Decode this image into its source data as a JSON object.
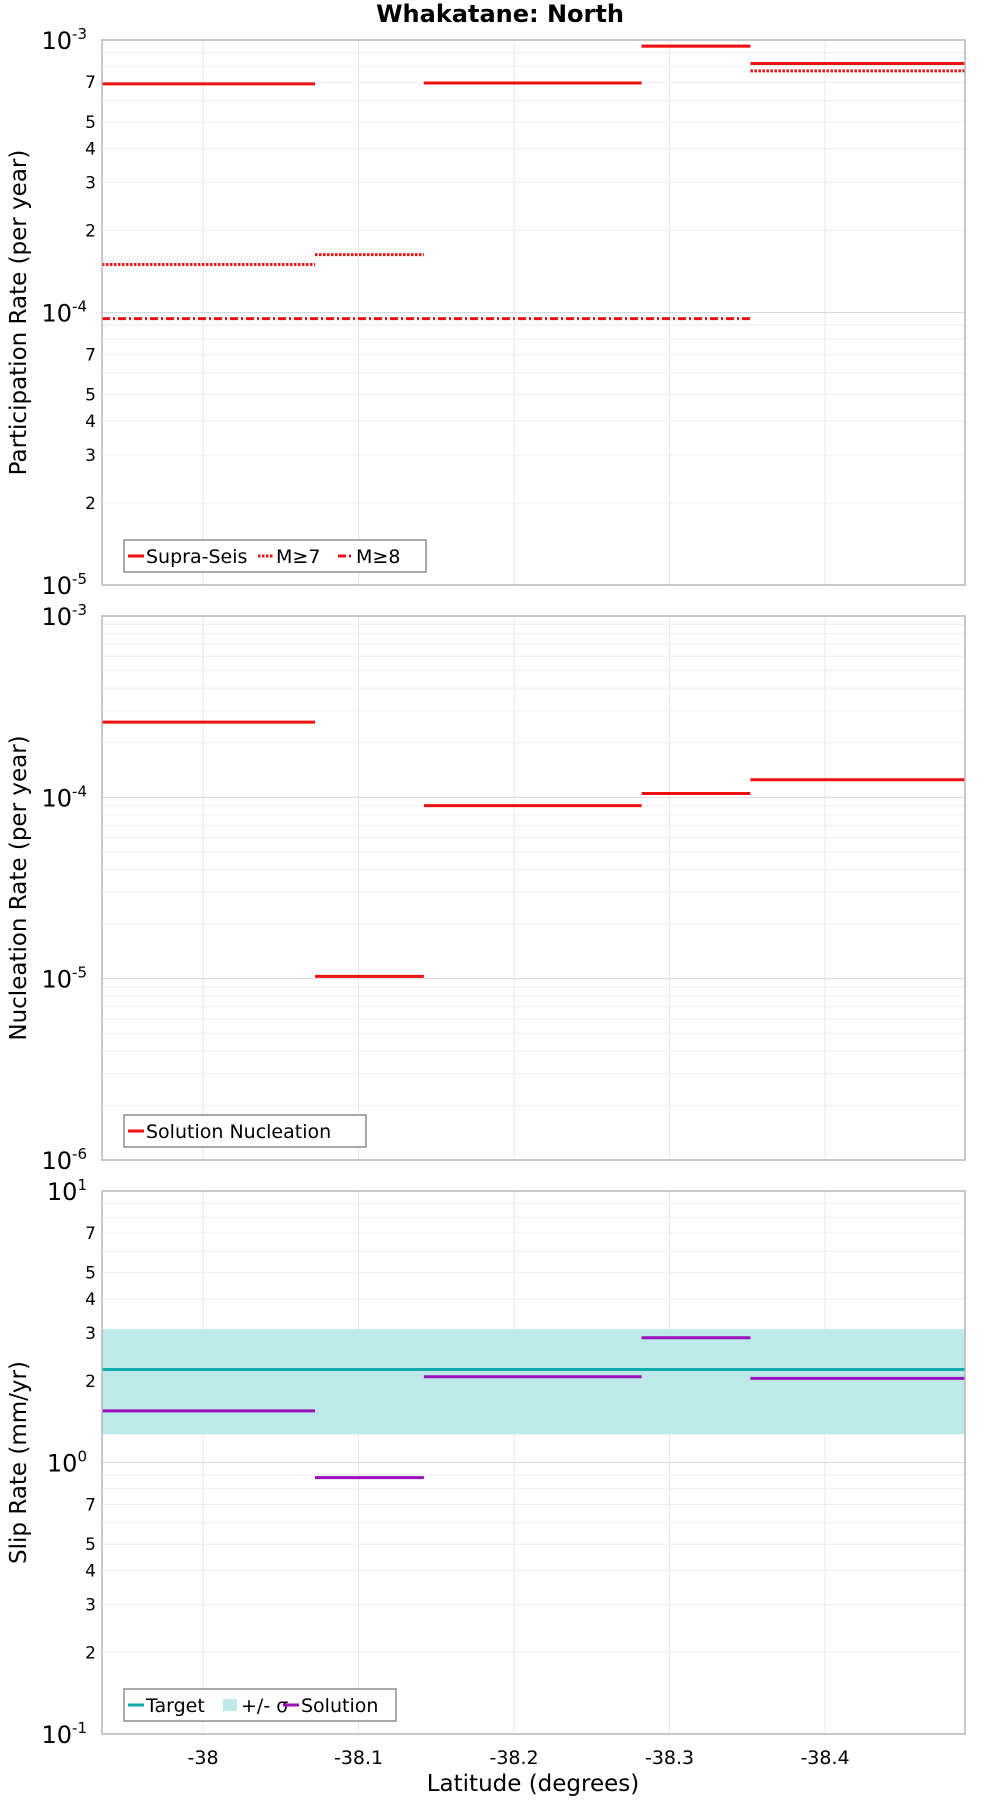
{
  "figure_title": "Whakatane: North",
  "x_axis_label": "Latitude (degrees)",
  "chart_data": [
    {
      "type": "step-line",
      "panel": "participation",
      "title": "Whakatane: North",
      "ylabel": "Participation Rate (per year)",
      "yscale": "log",
      "ylim": [
        1e-05,
        0.001
      ],
      "xlim": [
        -37.935,
        -38.49
      ],
      "xticks": [
        -38,
        -38.1,
        -38.2,
        -38.3,
        -38.4
      ],
      "xtick_labels": [
        "-38",
        "-38.1",
        "-38.2",
        "-38.3",
        "-38.4"
      ],
      "yticks": [
        {
          "value": 0.001,
          "base": "10",
          "exp": "-3",
          "major": true
        },
        {
          "value": 0.0007,
          "label": "7"
        },
        {
          "value": 0.0005,
          "label": "5"
        },
        {
          "value": 0.0004,
          "label": "4"
        },
        {
          "value": 0.0003,
          "label": "3"
        },
        {
          "value": 0.0002,
          "label": "2"
        },
        {
          "value": 0.0001,
          "base": "10",
          "exp": "-4",
          "major": true
        },
        {
          "value": 7e-05,
          "label": "7"
        },
        {
          "value": 5e-05,
          "label": "5"
        },
        {
          "value": 4e-05,
          "label": "4"
        },
        {
          "value": 3e-05,
          "label": "3"
        },
        {
          "value": 2e-05,
          "label": "2"
        },
        {
          "value": 1e-05,
          "base": "10",
          "exp": "-5",
          "major": true
        }
      ],
      "legend": [
        {
          "label": "Supra-Seis",
          "style": "solid",
          "color": "#ee1111"
        },
        {
          "label": "M≥7",
          "style": "dotted",
          "color": "#ee1111"
        },
        {
          "label": "M≥8",
          "style": "dashdot",
          "color": "#ee1111"
        }
      ],
      "series": [
        {
          "name": "Supra-Seis",
          "style": "solid",
          "color": "#ee1111",
          "segments": [
            {
              "x0": -37.935,
              "x1": -38.072,
              "y": 0.00069
            },
            {
              "x0": -38.142,
              "x1": -38.282,
              "y": 0.000695
            },
            {
              "x0": -38.282,
              "x1": -38.352,
              "y": 0.00095
            },
            {
              "x0": -38.352,
              "x1": -38.49,
              "y": 0.00082
            }
          ]
        },
        {
          "name": "M≥7",
          "style": "dotted",
          "color": "#ee1111",
          "segments": [
            {
              "x0": -37.935,
              "x1": -38.072,
              "y": 0.00015
            },
            {
              "x0": -38.072,
              "x1": -38.142,
              "y": 0.000163
            },
            {
              "x0": -38.142,
              "x1": -38.282,
              "y": 0.000695
            },
            {
              "x0": -38.282,
              "x1": -38.352,
              "y": 0.00095
            },
            {
              "x0": -38.352,
              "x1": -38.49,
              "y": 0.00077
            }
          ]
        },
        {
          "name": "M≥8",
          "style": "dashdot",
          "color": "#ee1111",
          "segments": [
            {
              "x0": -37.935,
              "x1": -38.352,
              "y": 9.5e-05
            }
          ]
        }
      ]
    },
    {
      "type": "step-line",
      "panel": "nucleation",
      "ylabel": "Nucleation Rate (per year)",
      "yscale": "log",
      "ylim": [
        1e-06,
        0.001
      ],
      "xlim": [
        -37.935,
        -38.49
      ],
      "yticks": [
        {
          "value": 0.001,
          "base": "10",
          "exp": "-3",
          "major": true
        },
        {
          "value": 0.0001,
          "base": "10",
          "exp": "-4",
          "major": true
        },
        {
          "value": 1e-05,
          "base": "10",
          "exp": "-5",
          "major": true
        },
        {
          "value": 1e-06,
          "base": "10",
          "exp": "-6",
          "major": true
        }
      ],
      "legend": [
        {
          "label": "Solution Nucleation",
          "style": "solid",
          "color": "#ee1111"
        }
      ],
      "series": [
        {
          "name": "Solution Nucleation",
          "style": "solid",
          "color": "#ee1111",
          "segments": [
            {
              "x0": -37.935,
              "x1": -38.072,
              "y": 0.00026
            },
            {
              "x0": -38.072,
              "x1": -38.142,
              "y": 1.03e-05
            },
            {
              "x0": -38.142,
              "x1": -38.282,
              "y": 9e-05
            },
            {
              "x0": -38.282,
              "x1": -38.352,
              "y": 0.000105
            },
            {
              "x0": -38.352,
              "x1": -38.49,
              "y": 0.000125
            }
          ]
        }
      ]
    },
    {
      "type": "step-line",
      "panel": "slip",
      "ylabel": "Slip Rate (mm/yr)",
      "yscale": "log",
      "ylim": [
        0.1,
        10
      ],
      "xlim": [
        -37.935,
        -38.49
      ],
      "xlabel": "Latitude (degrees)",
      "yticks": [
        {
          "value": 10,
          "base": "10",
          "exp": "1",
          "major": true
        },
        {
          "value": 7,
          "label": "7"
        },
        {
          "value": 5,
          "label": "5"
        },
        {
          "value": 4,
          "label": "4"
        },
        {
          "value": 3,
          "label": "3"
        },
        {
          "value": 2,
          "label": "2"
        },
        {
          "value": 1,
          "base": "10",
          "exp": "0",
          "major": true
        },
        {
          "value": 0.7,
          "label": "7"
        },
        {
          "value": 0.5,
          "label": "5"
        },
        {
          "value": 0.4,
          "label": "4"
        },
        {
          "value": 0.3,
          "label": "3"
        },
        {
          "value": 0.2,
          "label": "2"
        },
        {
          "value": 0.1,
          "base": "10",
          "exp": "-1",
          "major": true
        }
      ],
      "legend": [
        {
          "label": "Target",
          "style": "solid",
          "color": "#11aaaa"
        },
        {
          "label": "+/- σ",
          "style": "band",
          "color": "#bde9e9"
        },
        {
          "label": "Solution",
          "style": "solid",
          "color": "#9911bb"
        }
      ],
      "band": {
        "name": "+/- σ",
        "color": "#bde9e9",
        "y0": 1.27,
        "y1": 3.1
      },
      "series": [
        {
          "name": "Target",
          "style": "solid",
          "color": "#11aaaa",
          "segments": [
            {
              "x0": -37.935,
              "x1": -38.49,
              "y": 2.2
            }
          ]
        },
        {
          "name": "Solution",
          "style": "solid",
          "color": "#9911bb",
          "segments": [
            {
              "x0": -37.935,
              "x1": -38.072,
              "y": 1.55
            },
            {
              "x0": -38.072,
              "x1": -38.142,
              "y": 0.88
            },
            {
              "x0": -38.142,
              "x1": -38.282,
              "y": 2.07
            },
            {
              "x0": -38.282,
              "x1": -38.352,
              "y": 2.88
            },
            {
              "x0": -38.352,
              "x1": -38.49,
              "y": 2.04
            }
          ]
        }
      ]
    }
  ]
}
